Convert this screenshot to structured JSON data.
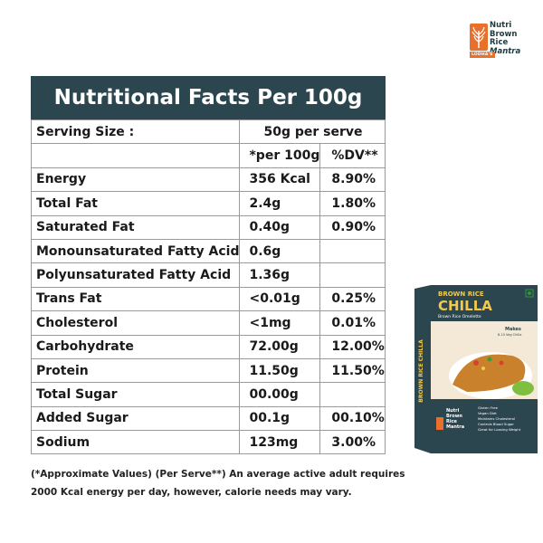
{
  "brand": {
    "line1": "Nutri",
    "line2": "Brown",
    "line3": "Rice",
    "line4": "Mantra",
    "tag": "LODHA'S"
  },
  "table": {
    "title": "Nutritional Facts Per 100g",
    "serving_label": "Serving Size :",
    "serving_value": "50g per serve",
    "col_per100": "*per 100g",
    "col_dv": "%DV**",
    "rows": [
      {
        "name": "Energy",
        "per100": "356 Kcal",
        "dv": "8.90%"
      },
      {
        "name": "Total Fat",
        "per100": "2.4g",
        "dv": "1.80%"
      },
      {
        "name": "Saturated Fat",
        "per100": "0.40g",
        "dv": "0.90%"
      },
      {
        "name": "Monounsaturated Fatty Acid",
        "per100": "0.6g",
        "dv": ""
      },
      {
        "name": "Polyunsaturated Fatty Acid",
        "per100": "1.36g",
        "dv": ""
      },
      {
        "name": "Trans Fat",
        "per100": "<0.01g",
        "dv": "0.25%"
      },
      {
        "name": "Cholesterol",
        "per100": "<1mg",
        "dv": "0.01%"
      },
      {
        "name": "Carbohydrate",
        "per100": "72.00g",
        "dv": "12.00%"
      },
      {
        "name": "Protein",
        "per100": "11.50g",
        "dv": "11.50%"
      },
      {
        "name": "Total Sugar",
        "per100": "00.00g",
        "dv": ""
      },
      {
        "name": "Added Sugar",
        "per100": "00.1g",
        "dv": "00.10%"
      },
      {
        "name": "Sodium",
        "per100": "123mg",
        "dv": "3.00%"
      }
    ]
  },
  "footnote": {
    "line1": "(*Approximate Values)  (Per Serve**)  An average active adult requires",
    "line2": "2000 Kcal energy per day, however, calorie needs may vary."
  },
  "product": {
    "top_label": "BROWN RICE",
    "name": "CHILLA",
    "subtitle": "Brown Rice Omelette",
    "makes": "Makes",
    "makes_sub": "8-10 Veg Chilla",
    "side_text": "BROWN RICE CHILLA",
    "brand1": "Nutri",
    "brand2": "Brown",
    "brand3": "Rice",
    "brand4": "Mantra",
    "benefits": [
      "Gluten Free",
      "Vegan Diet",
      "Maintains Cholesterol",
      "Controls Blood Sugar",
      "Great for Loosing Weight"
    ]
  }
}
